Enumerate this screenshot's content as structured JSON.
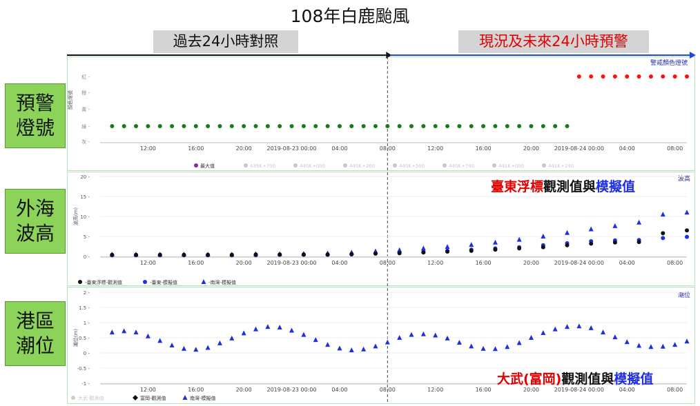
{
  "title": "108年白鹿颱風",
  "banners": {
    "past": "過去24小時對照",
    "now": "現況及未來24小時預警"
  },
  "side_labels": [
    {
      "line1": "預警",
      "line2": "燈號"
    },
    {
      "line1": "外海",
      "line2": "波高"
    },
    {
      "line1": "港區",
      "line2": "潮位"
    }
  ],
  "overlays": {
    "wave": {
      "part1": "臺東浮標",
      "part2": "觀測值與",
      "part3": "模擬值"
    },
    "tide": {
      "part1": "大武(富岡)",
      "part2": "觀測值與",
      "part3": "模擬值"
    }
  },
  "colors": {
    "past_arrow": "#111111",
    "now_arrow": "#1e48e0",
    "green": "#1a7a1a",
    "red": "#ff1010",
    "black": "#111111",
    "blue": "#1e2ee0",
    "legend_purple": "#7b2aa8"
  },
  "x_tick_labels": [
    "12:00",
    "16:00",
    "20:00",
    "2019-08-23 00:00",
    "04:00",
    "08:00",
    "12:00",
    "16:00",
    "20:00",
    "2019-08-24 00:00",
    "04:00",
    "08:00"
  ],
  "chart_data": [
    {
      "type": "scatter",
      "panel": "warning",
      "title": "警戒顏色燈號",
      "ylabel": "顏色燈號",
      "y_categories": [
        "灰",
        "綠",
        "黃",
        "橙",
        "紅"
      ],
      "x_hours": {
        "start": 8,
        "end": 57,
        "tick_hours": [
          12,
          16,
          20,
          24,
          28,
          32,
          36,
          40,
          44,
          48,
          52,
          56
        ]
      },
      "series": [
        {
          "name": "最大值",
          "color": "#1a7a1a",
          "x_start_hour": 9,
          "step_hours": 1,
          "category": "綠",
          "count": 39
        },
        {
          "name": "最大值",
          "color": "#ff1010",
          "x_start_hour": 48,
          "step_hours": 1,
          "category": "紅",
          "count": 10
        }
      ],
      "legend": [
        "最大值",
        "439K+700",
        "440K+000",
        "440K+260",
        "440K+500",
        "440K+740",
        "441K+000",
        "441K+240"
      ]
    },
    {
      "type": "scatter",
      "panel": "wave",
      "title": "波高",
      "ylabel": "波高(m)",
      "ylim": [
        0,
        20
      ],
      "y_ticks": [
        0,
        5,
        10,
        15,
        20
      ],
      "series": [
        {
          "name": "-臺東浮標-觀測值",
          "marker": "circle",
          "color": "#111111",
          "x": [
            9,
            11,
            13,
            15,
            17,
            19,
            21,
            23,
            25,
            27,
            29,
            31,
            33,
            35,
            37,
            39,
            41,
            43,
            45,
            47,
            49,
            51,
            53,
            55,
            57
          ],
          "values": [
            0.4,
            0.4,
            0.4,
            0.4,
            0.4,
            0.4,
            0.5,
            0.5,
            0.5,
            0.5,
            0.6,
            0.7,
            0.8,
            1.0,
            1.2,
            1.4,
            1.7,
            2.0,
            2.3,
            2.8,
            3.2,
            3.5,
            3.6,
            5.8,
            6.5
          ]
        },
        {
          "name": "-臺東-模擬值",
          "marker": "circle",
          "color": "#1e2ee0",
          "x": [
            9,
            11,
            13,
            15,
            17,
            19,
            21,
            23,
            25,
            27,
            29,
            31,
            33,
            35,
            37,
            39,
            41,
            43,
            45,
            47,
            49,
            51,
            53,
            55,
            57
          ],
          "values": [
            0.3,
            0.3,
            0.3,
            0.3,
            0.3,
            0.3,
            0.3,
            0.4,
            0.4,
            0.4,
            0.5,
            0.7,
            0.9,
            1.1,
            1.4,
            1.7,
            2.0,
            2.3,
            2.8,
            3.3,
            3.8,
            4.0,
            4.1,
            4.6,
            4.9
          ]
        },
        {
          "name": "-南灣-模擬值",
          "marker": "triangle",
          "color": "#1e2ee0",
          "x": [
            9,
            11,
            13,
            15,
            17,
            19,
            21,
            23,
            25,
            27,
            29,
            31,
            33,
            35,
            37,
            39,
            41,
            43,
            45,
            47,
            49,
            51,
            53,
            55,
            57
          ],
          "values": [
            0.5,
            0.5,
            0.5,
            0.5,
            0.5,
            0.5,
            0.6,
            0.6,
            0.7,
            0.8,
            1.0,
            1.3,
            1.6,
            2.0,
            2.4,
            2.9,
            3.5,
            4.2,
            5.0,
            5.9,
            6.8,
            7.6,
            8.5,
            10.5,
            11.0
          ]
        }
      ]
    },
    {
      "type": "scatter",
      "panel": "tide",
      "title": "潮位",
      "ylabel": "潮位(m)",
      "ylim": [
        -1,
        2
      ],
      "y_ticks": [
        -1,
        -0.5,
        0,
        0.5,
        1,
        1.5,
        2
      ],
      "series": [
        {
          "name": "大武-觀測值",
          "marker": "circle",
          "color": "#cccccc",
          "x": [],
          "values": []
        },
        {
          "name": "富岡-觀測值",
          "marker": "diamond",
          "color": "#111111",
          "x": [],
          "values": []
        },
        {
          "name": "南灣-模擬值",
          "marker": "triangle",
          "color": "#1e2ee0",
          "x": [
            9,
            10,
            11,
            12,
            13,
            14,
            15,
            16,
            17,
            18,
            19,
            20,
            21,
            22,
            23,
            24,
            25,
            26,
            27,
            28,
            29,
            30,
            31,
            32,
            33,
            34,
            35,
            36,
            37,
            38,
            39,
            40,
            41,
            42,
            43,
            44,
            45,
            46,
            47,
            48,
            49,
            50,
            51,
            52,
            53,
            54,
            55,
            56,
            57
          ],
          "values": [
            0.68,
            0.72,
            0.68,
            0.55,
            0.4,
            0.25,
            0.14,
            0.11,
            0.17,
            0.32,
            0.48,
            0.65,
            0.78,
            0.86,
            0.84,
            0.74,
            0.6,
            0.43,
            0.27,
            0.15,
            0.09,
            0.12,
            0.22,
            0.35,
            0.5,
            0.6,
            0.62,
            0.58,
            0.48,
            0.34,
            0.22,
            0.14,
            0.13,
            0.2,
            0.33,
            0.5,
            0.66,
            0.78,
            0.86,
            0.88,
            0.82,
            0.68,
            0.52,
            0.36,
            0.24,
            0.2,
            0.21,
            0.27,
            0.38
          ]
        }
      ]
    }
  ]
}
